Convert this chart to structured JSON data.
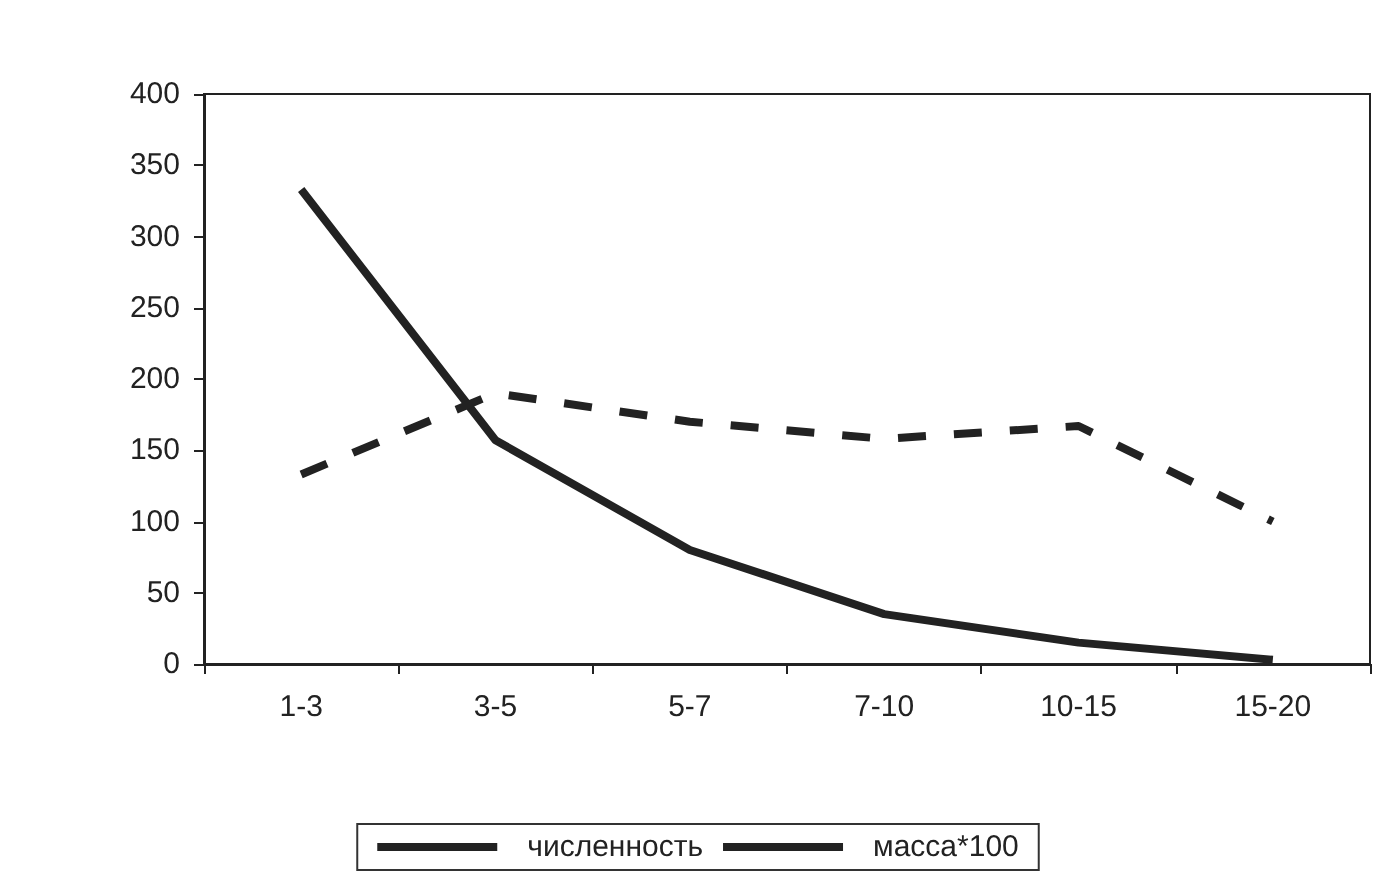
{
  "chart_data": {
    "type": "line",
    "categories": [
      "1-3",
      "3-5",
      "5-7",
      "7-10",
      "10-15",
      "15-20"
    ],
    "series": [
      {
        "name": "численность",
        "color": "#222222",
        "values": [
          333,
          157,
          80,
          35,
          15,
          3
        ],
        "line_style": "solid"
      },
      {
        "name": "масса*100",
        "color": "#222222",
        "values": [
          133,
          190,
          170,
          158,
          167,
          100
        ],
        "line_style": "dashed"
      }
    ],
    "ylim": [
      0,
      400
    ],
    "yticks": [
      0,
      50,
      100,
      150,
      200,
      250,
      300,
      350,
      400
    ],
    "grid": false,
    "legend": "bottom",
    "marker": "none"
  }
}
